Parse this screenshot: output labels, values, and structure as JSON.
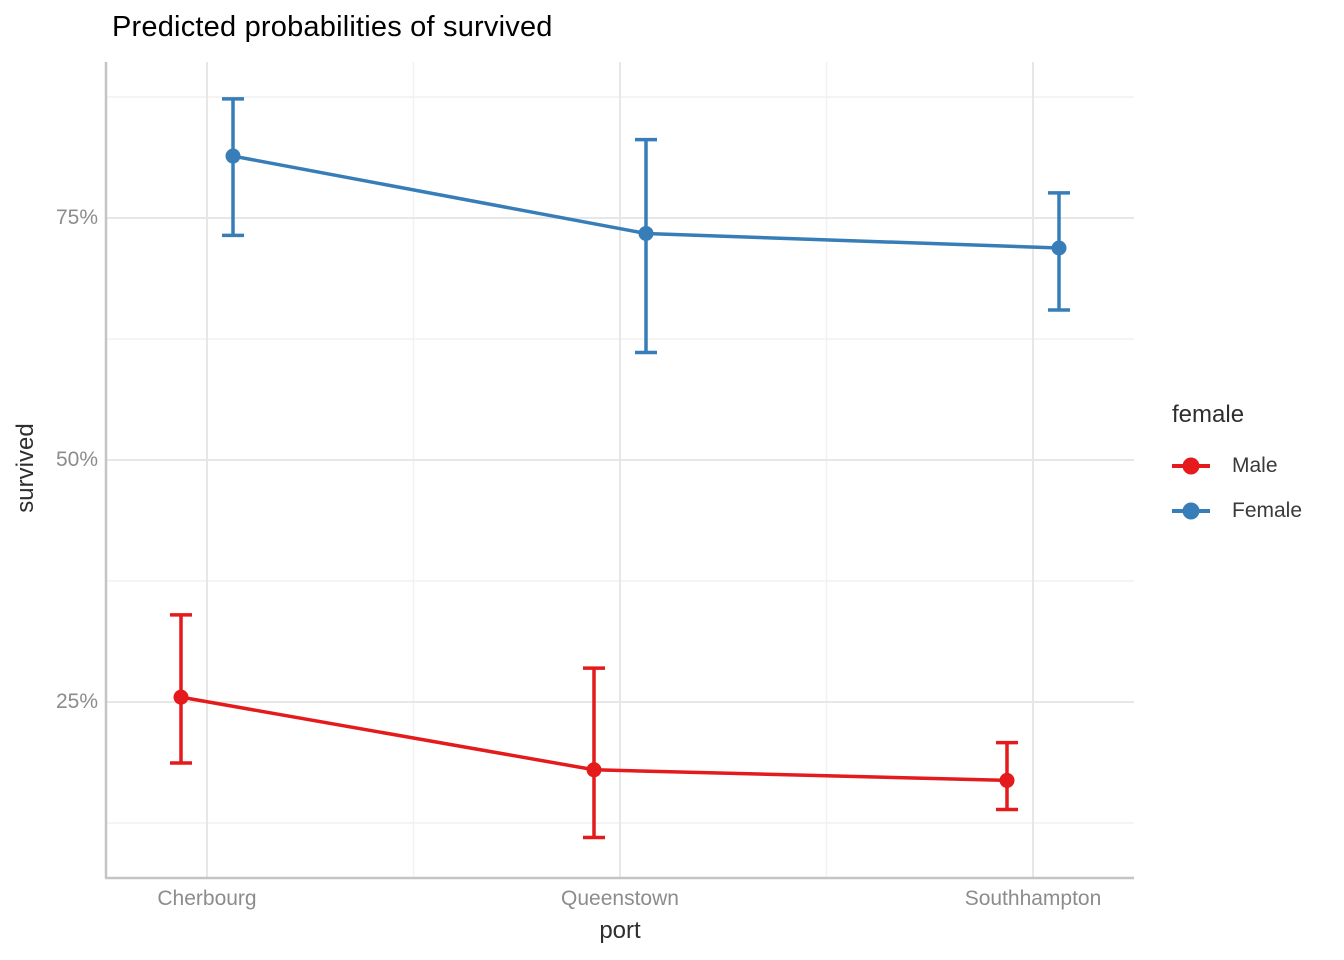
{
  "title": "Predicted probabilities of survived",
  "legend": {
    "title": "female",
    "items": [
      {
        "label": "Male",
        "color": "#E41A1C"
      },
      {
        "label": "Female",
        "color": "#377EB8"
      }
    ]
  },
  "colors": {
    "male_series": "#E41A1C",
    "female_series": "#377EB8",
    "axis_line": "#C4C4C4",
    "grid_major": "#E7E7E7",
    "grid_minor": "#F1F1F1",
    "tick_text": "#8C8C8C",
    "axis_title_text": "#2E2E2E"
  },
  "chart_data": {
    "type": "line",
    "subtype": "point-range with error bars (dodged)",
    "title": "Predicted probabilities of survived",
    "xlabel": "port",
    "ylabel": "survived",
    "categories": [
      "Cherbourg",
      "Queenstown",
      "Southhampton"
    ],
    "y_ticks": [
      {
        "value": 25,
        "label": "25%"
      },
      {
        "value": 50,
        "label": "50%"
      },
      {
        "value": 75,
        "label": "75%"
      }
    ],
    "y_minor_gridlines": [
      12.5,
      37.5,
      62.5,
      87.5
    ],
    "ylim": [
      7,
      91
    ],
    "grid": true,
    "legend_position": "right",
    "legend_title": "female",
    "series": [
      {
        "name": "Male",
        "color": "#E41A1C",
        "values": [
          25.5,
          18.0,
          16.9
        ],
        "ci_low": [
          18.7,
          11.0,
          13.9
        ],
        "ci_high": [
          34.0,
          28.5,
          20.8
        ]
      },
      {
        "name": "Female",
        "color": "#377EB8",
        "values": [
          81.4,
          73.4,
          71.9
        ],
        "ci_low": [
          73.2,
          61.1,
          65.5
        ],
        "ci_high": [
          87.3,
          83.1,
          77.6
        ]
      }
    ]
  }
}
